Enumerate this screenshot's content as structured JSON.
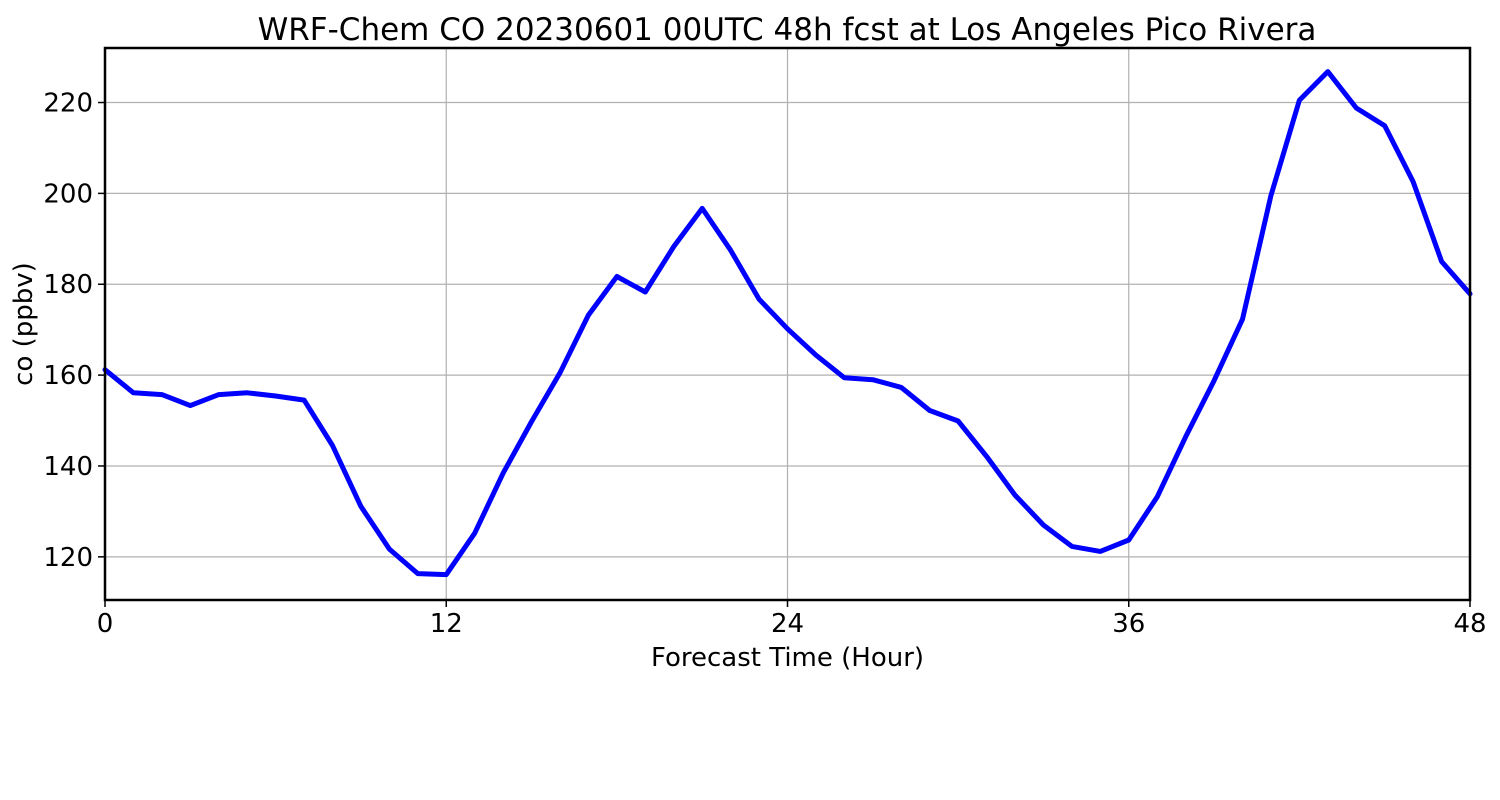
{
  "chart_data": {
    "type": "line",
    "title": "WRF-Chem CO  20230601 00UTC 48h fcst at Los Angeles Pico Rivera",
    "xlabel": "Forecast Time (Hour)",
    "ylabel": "co  (ppbv)",
    "xlim": [
      0,
      48
    ],
    "ylim": [
      110.5,
      232
    ],
    "xticks": [
      0,
      12,
      24,
      36,
      48
    ],
    "yticks": [
      120,
      140,
      160,
      180,
      200,
      220
    ],
    "grid": true,
    "series": [
      {
        "color": "#0000ff",
        "x": [
          0,
          1,
          2,
          3,
          4,
          5,
          6,
          7,
          8,
          9,
          10,
          11,
          12,
          13,
          14,
          15,
          16,
          17,
          18,
          19,
          20,
          21,
          22,
          23,
          24,
          25,
          26,
          27,
          28,
          29,
          30,
          31,
          32,
          33,
          34,
          35,
          36,
          37,
          38,
          39,
          40,
          41,
          42,
          43,
          44,
          45,
          46,
          47,
          48
        ],
        "values": [
          161.2,
          156.1,
          155.7,
          153.3,
          155.7,
          156.1,
          155.4,
          154.5,
          144.5,
          131.1,
          121.7,
          116.3,
          116.1,
          125.2,
          138.4,
          149.8,
          160.5,
          173.2,
          181.7,
          178.3,
          188.3,
          196.7,
          187.5,
          176.7,
          170.2,
          164.4,
          159.4,
          159.0,
          157.3,
          152.2,
          149.9,
          142.1,
          133.6,
          127.0,
          122.3,
          121.2,
          123.7,
          133.2,
          146.4,
          158.8,
          172.3,
          199.5,
          220.5,
          226.8,
          218.8,
          214.9,
          202.6,
          185.0,
          177.9
        ]
      }
    ]
  }
}
